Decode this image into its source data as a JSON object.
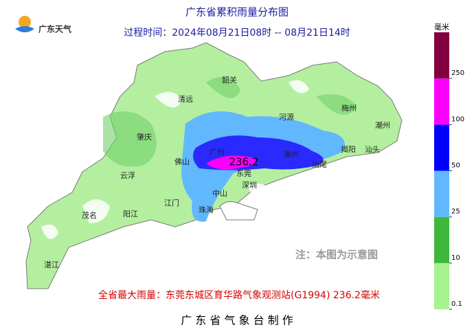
{
  "header": {
    "title": "广东省累积雨量分布图",
    "subtitle": "过程时间：2024年08月21日08时 -- 08月21日14时",
    "logo": "广东天气"
  },
  "map": {
    "cities": [
      "韶关",
      "清远",
      "河源",
      "梅州",
      "潮州",
      "肇庆",
      "揭阳",
      "汕头",
      "惠州",
      "广州",
      "佛山",
      "东莞",
      "汕尾",
      "云浮",
      "深圳",
      "中山",
      "江门",
      "珠海",
      "茂名",
      "阳江",
      "湛江"
    ],
    "max_value": "236.2",
    "note": "注：本图为示意图",
    "max_text": "全省最大雨量：东莞东城区育华路气象观测站(G1994) 236.2毫米"
  },
  "legend": {
    "unit": "毫米",
    "ticks": [
      0.1,
      10,
      25,
      50,
      100,
      250
    ],
    "colors": [
      "#a6f28f",
      "#3db83d",
      "#61b8ff",
      "#0000fe",
      "#fa00fa",
      "#800040"
    ]
  },
  "footer": "广 东 省 气 象 台 制 作"
}
